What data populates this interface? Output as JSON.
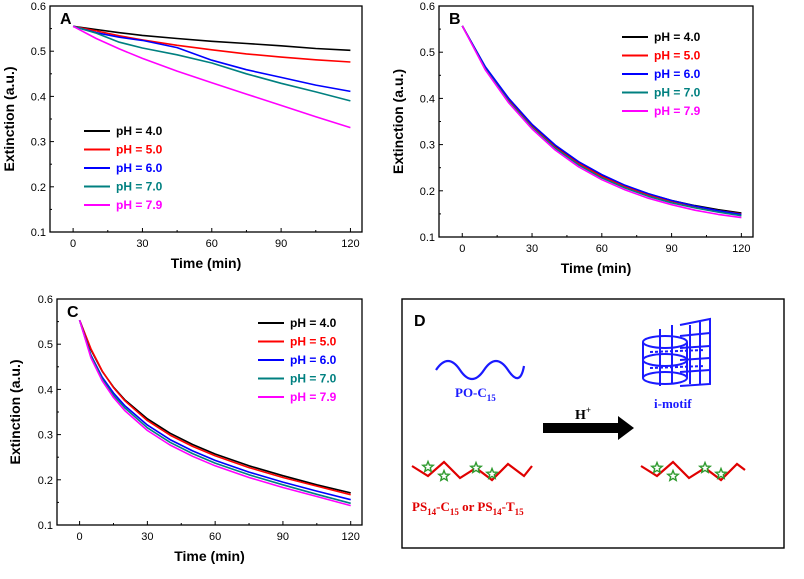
{
  "chart_data": [
    {
      "panel": "A",
      "type": "line",
      "xlabel": "Time (min)",
      "ylabel": "Extinction (a.u.)",
      "xlim": [
        -10,
        125
      ],
      "ylim": [
        0.1,
        0.6
      ],
      "xticks": [
        0,
        30,
        60,
        90,
        120
      ],
      "yticks": [
        0.1,
        0.2,
        0.3,
        0.4,
        0.5,
        0.6
      ],
      "legend_position": "bottom-left",
      "series": [
        {
          "name": "pH = 4.0",
          "color": "#000000",
          "x": [
            0,
            10,
            20,
            30,
            45,
            60,
            75,
            90,
            105,
            120
          ],
          "values": [
            0.555,
            0.548,
            0.541,
            0.535,
            0.528,
            0.522,
            0.517,
            0.512,
            0.506,
            0.502
          ]
        },
        {
          "name": "pH = 5.0",
          "color": "#ff0000",
          "x": [
            0,
            10,
            20,
            30,
            45,
            60,
            75,
            90,
            105,
            120
          ],
          "values": [
            0.555,
            0.545,
            0.534,
            0.525,
            0.513,
            0.503,
            0.494,
            0.487,
            0.481,
            0.476
          ]
        },
        {
          "name": "pH = 6.0",
          "color": "#0000ff",
          "x": [
            0,
            10,
            20,
            30,
            45,
            60,
            75,
            90,
            105,
            120
          ],
          "values": [
            0.555,
            0.541,
            0.531,
            0.524,
            0.508,
            0.48,
            0.459,
            0.442,
            0.425,
            0.411
          ]
        },
        {
          "name": "pH = 7.0",
          "color": "#008080",
          "x": [
            0,
            10,
            20,
            30,
            45,
            60,
            75,
            90,
            105,
            120
          ],
          "values": [
            0.555,
            0.54,
            0.52,
            0.507,
            0.492,
            0.474,
            0.45,
            0.429,
            0.41,
            0.39
          ]
        },
        {
          "name": "pH = 7.9",
          "color": "#ff00ff",
          "x": [
            0,
            10,
            20,
            30,
            45,
            60,
            75,
            90,
            105,
            120
          ],
          "values": [
            0.555,
            0.528,
            0.505,
            0.484,
            0.456,
            0.43,
            0.405,
            0.38,
            0.355,
            0.331
          ]
        }
      ]
    },
    {
      "panel": "B",
      "type": "line",
      "xlabel": "Time (min)",
      "ylabel": "Extinction (a.u.)",
      "xlim": [
        -10,
        125
      ],
      "ylim": [
        0.1,
        0.6
      ],
      "xticks": [
        0,
        30,
        60,
        90,
        120
      ],
      "yticks": [
        0.1,
        0.2,
        0.3,
        0.4,
        0.5,
        0.6
      ],
      "legend_position": "top-right",
      "series": [
        {
          "name": "pH = 4.0",
          "color": "#000000",
          "x": [
            0,
            10,
            20,
            30,
            40,
            50,
            60,
            70,
            80,
            90,
            100,
            110,
            120
          ],
          "values": [
            0.557,
            0.466,
            0.397,
            0.341,
            0.296,
            0.261,
            0.233,
            0.211,
            0.193,
            0.179,
            0.168,
            0.159,
            0.152
          ]
        },
        {
          "name": "pH = 5.0",
          "color": "#ff0000",
          "x": [
            0,
            10,
            20,
            30,
            40,
            50,
            60,
            70,
            80,
            90,
            100,
            110,
            120
          ],
          "values": [
            0.557,
            0.464,
            0.395,
            0.339,
            0.294,
            0.259,
            0.231,
            0.209,
            0.191,
            0.177,
            0.166,
            0.157,
            0.15
          ]
        },
        {
          "name": "pH = 6.0",
          "color": "#0000ff",
          "x": [
            0,
            10,
            20,
            30,
            40,
            50,
            60,
            70,
            80,
            90,
            100,
            110,
            120
          ],
          "values": [
            0.557,
            0.468,
            0.4,
            0.344,
            0.299,
            0.263,
            0.235,
            0.212,
            0.194,
            0.179,
            0.167,
            0.157,
            0.149
          ]
        },
        {
          "name": "pH = 7.0",
          "color": "#008080",
          "x": [
            0,
            10,
            20,
            30,
            40,
            50,
            60,
            70,
            80,
            90,
            100,
            110,
            120
          ],
          "values": [
            0.557,
            0.463,
            0.393,
            0.337,
            0.292,
            0.256,
            0.228,
            0.206,
            0.188,
            0.174,
            0.163,
            0.154,
            0.146
          ]
        },
        {
          "name": "pH = 7.9",
          "color": "#ff00ff",
          "x": [
            0,
            10,
            20,
            30,
            40,
            50,
            60,
            70,
            80,
            90,
            100,
            110,
            120
          ],
          "values": [
            0.557,
            0.461,
            0.39,
            0.334,
            0.288,
            0.252,
            0.224,
            0.202,
            0.184,
            0.17,
            0.158,
            0.149,
            0.142
          ]
        }
      ]
    },
    {
      "panel": "C",
      "type": "line",
      "xlabel": "Time (min)",
      "ylabel": "Extinction (a.u.)",
      "xlim": [
        -10,
        125
      ],
      "ylim": [
        0.1,
        0.6
      ],
      "xticks": [
        0,
        30,
        60,
        90,
        120
      ],
      "yticks": [
        0.1,
        0.2,
        0.3,
        0.4,
        0.5,
        0.6
      ],
      "legend_position": "top-right",
      "series": [
        {
          "name": "pH = 4.0",
          "color": "#000000",
          "x": [
            0,
            5,
            10,
            15,
            20,
            30,
            40,
            50,
            60,
            75,
            90,
            105,
            120
          ],
          "values": [
            0.553,
            0.488,
            0.44,
            0.405,
            0.377,
            0.335,
            0.303,
            0.278,
            0.257,
            0.231,
            0.209,
            0.189,
            0.171
          ]
        },
        {
          "name": "pH = 5.0",
          "color": "#ff0000",
          "x": [
            0,
            5,
            10,
            15,
            20,
            30,
            40,
            50,
            60,
            75,
            90,
            105,
            120
          ],
          "values": [
            0.553,
            0.49,
            0.441,
            0.404,
            0.375,
            0.331,
            0.299,
            0.274,
            0.253,
            0.227,
            0.205,
            0.186,
            0.167
          ]
        },
        {
          "name": "pH = 6.0",
          "color": "#0000ff",
          "x": [
            0,
            5,
            10,
            15,
            20,
            30,
            40,
            50,
            60,
            75,
            90,
            105,
            120
          ],
          "values": [
            0.553,
            0.476,
            0.427,
            0.392,
            0.364,
            0.321,
            0.289,
            0.264,
            0.243,
            0.217,
            0.195,
            0.175,
            0.156
          ]
        },
        {
          "name": "pH = 7.0",
          "color": "#008080",
          "x": [
            0,
            5,
            10,
            15,
            20,
            30,
            40,
            50,
            60,
            75,
            90,
            105,
            120
          ],
          "values": [
            0.553,
            0.474,
            0.423,
            0.387,
            0.359,
            0.315,
            0.283,
            0.258,
            0.237,
            0.211,
            0.189,
            0.168,
            0.148
          ]
        },
        {
          "name": "pH = 7.9",
          "color": "#ff00ff",
          "x": [
            0,
            5,
            10,
            15,
            20,
            30,
            40,
            50,
            60,
            75,
            90,
            105,
            120
          ],
          "values": [
            0.553,
            0.47,
            0.419,
            0.382,
            0.353,
            0.309,
            0.277,
            0.252,
            0.231,
            0.205,
            0.183,
            0.163,
            0.143
          ]
        }
      ]
    }
  ],
  "panel_d": {
    "letter": "D",
    "po_label": "PO-C",
    "po_sub": "15",
    "arrow_label": "H",
    "arrow_sup": "+",
    "imotif_label": "i-motif",
    "ps_label_a": "PS",
    "ps_sub_a1": "14",
    "ps_mid_a": "-C",
    "ps_sub_a2": "15",
    "ps_or": " or PS",
    "ps_sub_b1": "14",
    "ps_mid_b": "-T",
    "ps_sub_b2": "15",
    "colors": {
      "blue": "#1a1aff",
      "red": "#e00000",
      "green": "#2e9a2e"
    }
  }
}
